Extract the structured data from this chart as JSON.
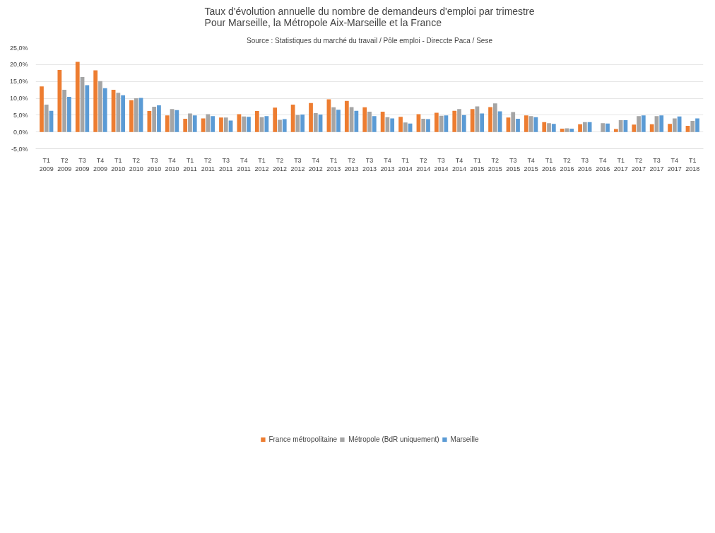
{
  "chart_data": {
    "type": "bar",
    "title": "Taux d'évolution annuelle du nombre de demandeurs d'emploi par trimestre\nPour Marseille, la Métropole Aix-Marseille et la France",
    "subtitle": "Source : Statistiques du marché du travail / Pôle emploi - Direccte Paca / Sese",
    "categories": [
      "T1 2009",
      "T2 2009",
      "T3 2009",
      "T4 2009",
      "T1 2010",
      "T2 2010",
      "T3 2010",
      "T4 2010",
      "T1 2011",
      "T2 2011",
      "T3 2011",
      "T4 2011",
      "T1 2012",
      "T2 2012",
      "T3 2012",
      "T4 2012",
      "T1 2013",
      "T2 2013",
      "T3 2013",
      "T4 2013",
      "T1 2014",
      "T2 2014",
      "T3 2014",
      "T4 2014",
      "T1 2015",
      "T2 2015",
      "T3 2015",
      "T4 2015",
      "T1 2016",
      "T2 2016",
      "T3 2016",
      "T4 2016",
      "T1 2017",
      "T2 2017",
      "T3 2017",
      "T4 2017",
      "T1 2018"
    ],
    "series": [
      {
        "name": "France métropolitaine",
        "color": "#ed7d31",
        "values": [
          13.5,
          18.4,
          20.8,
          18.3,
          12.5,
          9.4,
          6.2,
          4.9,
          3.9,
          4.0,
          4.3,
          5.3,
          6.2,
          7.2,
          8.1,
          8.6,
          9.7,
          9.2,
          7.3,
          6.0,
          4.5,
          5.3,
          5.7,
          6.3,
          6.8,
          7.4,
          4.3,
          4.9,
          2.9,
          1.0,
          2.3,
          0.0,
          0.9,
          2.2,
          2.3,
          2.4,
          1.8
        ]
      },
      {
        "name": "Métropole (BdR uniquement)",
        "color": "#a5a5a5",
        "values": [
          8.1,
          12.5,
          16.3,
          15.1,
          11.6,
          10.0,
          7.5,
          6.8,
          5.5,
          5.3,
          4.3,
          4.6,
          4.4,
          3.6,
          5.0,
          5.6,
          7.3,
          7.4,
          6.0,
          4.4,
          2.8,
          3.9,
          4.8,
          6.8,
          7.6,
          8.5,
          5.9,
          4.7,
          2.6,
          1.1,
          2.9,
          2.6,
          3.5,
          4.7,
          4.7,
          4.0,
          3.3
        ]
      },
      {
        "name": "Marseille",
        "color": "#5b9bd5",
        "values": [
          6.3,
          10.4,
          13.9,
          13.0,
          10.9,
          10.1,
          7.9,
          6.5,
          4.9,
          4.7,
          3.4,
          4.5,
          4.7,
          3.8,
          5.2,
          5.2,
          6.6,
          6.3,
          4.7,
          4.0,
          2.5,
          3.8,
          4.9,
          5.0,
          5.5,
          6.1,
          3.9,
          4.4,
          2.4,
          1.0,
          2.9,
          2.5,
          3.5,
          4.9,
          4.9,
          4.6,
          4.0
        ]
      }
    ],
    "ylim": [
      -5,
      25
    ],
    "yticks": [
      {
        "value": -5,
        "label": "-5,0%"
      },
      {
        "value": 0,
        "label": "0,0%"
      },
      {
        "value": 5,
        "label": "5,0%"
      },
      {
        "value": 10,
        "label": "10,0%"
      },
      {
        "value": 15,
        "label": "15,0%"
      },
      {
        "value": 20,
        "label": "20,0%"
      },
      {
        "value": 25,
        "label": "25,0%"
      }
    ],
    "grid": "y",
    "legend": "bottom"
  }
}
